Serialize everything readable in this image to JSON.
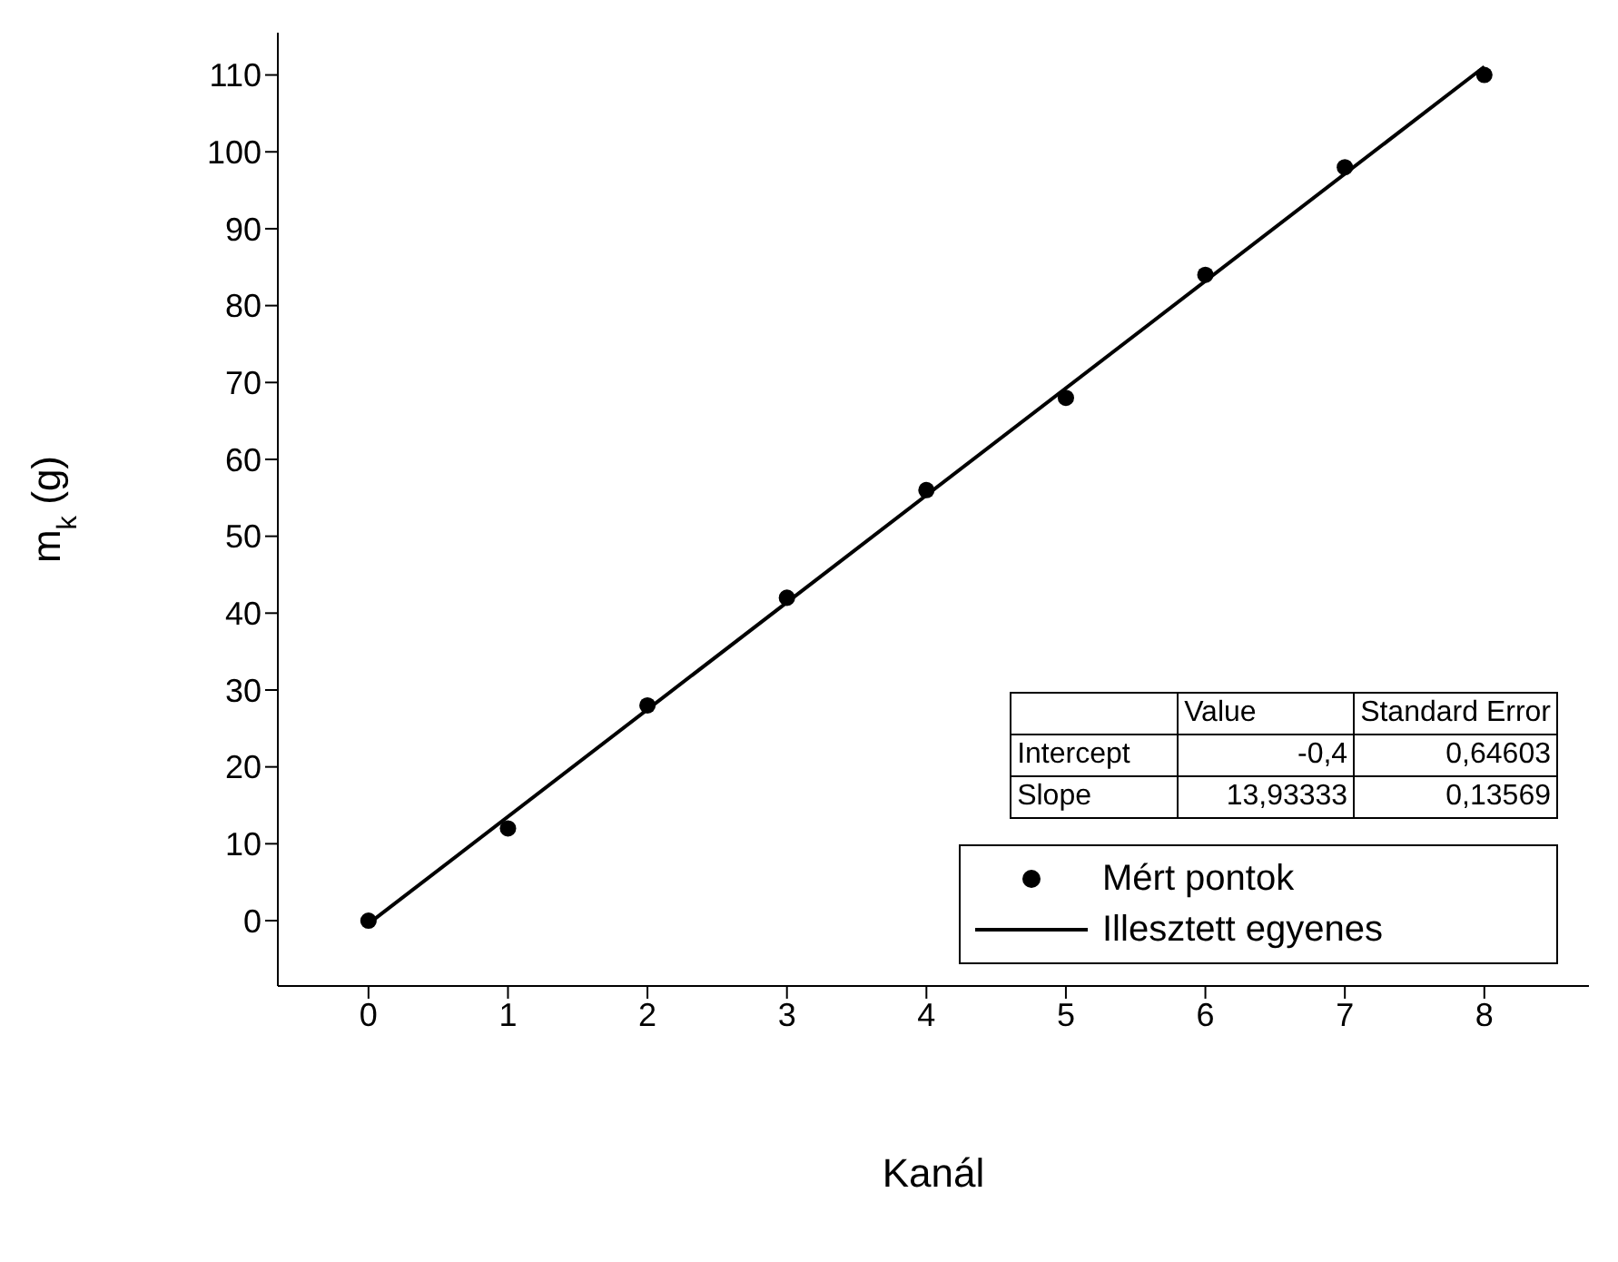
{
  "chart_data": {
    "type": "scatter",
    "xlabel": "Kanál",
    "ylabel": "m$_{k}$ (g)",
    "x": [
      0,
      1,
      2,
      3,
      4,
      5,
      6,
      7,
      8
    ],
    "series": [
      {
        "name": "Mért pontok",
        "color": "#000000",
        "marker": "circle",
        "values": [
          0,
          12,
          28,
          42,
          56,
          68,
          84,
          98,
          110
        ]
      },
      {
        "name": "Illesztett egyenes",
        "type": "line",
        "color": "#000000",
        "marker": "none",
        "line_style": "solid",
        "x": [
          0,
          8
        ],
        "values": [
          -0.4,
          111.07
        ]
      }
    ],
    "xlim": [
      -0.65,
      8.75
    ],
    "xticks": [
      0,
      1,
      2,
      3,
      4,
      5,
      6,
      7,
      8
    ],
    "ylim": [
      -8.5,
      115.5
    ],
    "yticks": [
      0,
      10,
      20,
      30,
      40,
      50,
      60,
      70,
      80,
      90,
      100,
      110
    ],
    "grid": false,
    "legend": "bottom right",
    "annotations": [
      "Value",
      "Standard Error",
      "Intercept",
      "-0,4",
      "0,64603",
      "Slope",
      "13,93333",
      "0,13569"
    ]
  }
}
